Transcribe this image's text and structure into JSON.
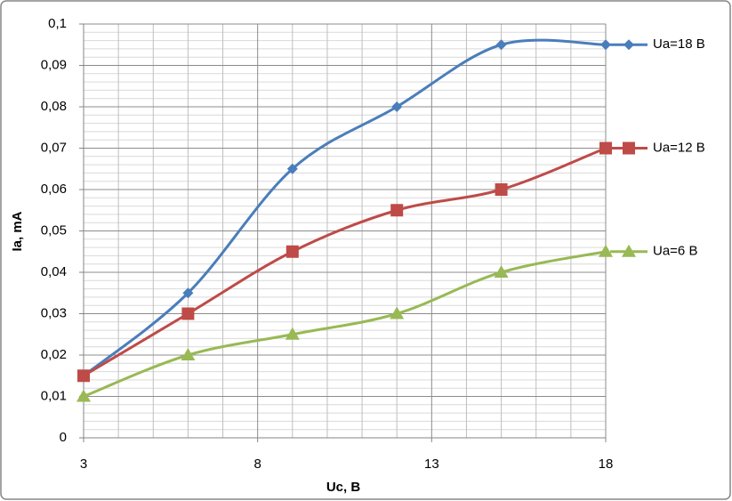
{
  "chart_data": {
    "type": "line",
    "x_label": "Uc, B",
    "y_label": "Ia, mA",
    "x": [
      3,
      6,
      9,
      12,
      15,
      18
    ],
    "series": [
      {
        "name": "Ua=18 B",
        "color": "#4a7ebb",
        "marker": "diamond",
        "values": [
          0.015,
          0.035,
          0.065,
          0.08,
          0.095,
          0.095
        ]
      },
      {
        "name": "Ua=12 B",
        "color": "#be4b48",
        "marker": "square",
        "values": [
          0.015,
          0.03,
          0.045,
          0.055,
          0.06,
          0.07
        ]
      },
      {
        "name": "Ua=6 B",
        "color": "#98b954",
        "marker": "triangle",
        "values": [
          0.01,
          0.02,
          0.025,
          0.03,
          0.04,
          0.045
        ]
      }
    ],
    "xlim": [
      3,
      18
    ],
    "xticks": [
      3,
      8,
      13,
      18
    ],
    "ylim": [
      0,
      0.1
    ],
    "yticks": [
      0,
      {
        "value": 0.01,
        "label": "0,01"
      },
      {
        "value": 0.02,
        "label": "0,02"
      },
      {
        "value": 0.03,
        "label": "0,03"
      },
      {
        "value": 0.04,
        "label": "0,04"
      },
      {
        "value": 0.05,
        "label": "0,05"
      },
      {
        "value": 0.06,
        "label": "0,06"
      },
      {
        "value": 0.07,
        "label": "0,07"
      },
      {
        "value": 0.08,
        "label": "0,08"
      },
      {
        "value": 0.09,
        "label": "0,09"
      },
      {
        "value": 0.1,
        "label": "0,1"
      }
    ],
    "smooth": true,
    "grid": true,
    "legend": "right"
  }
}
